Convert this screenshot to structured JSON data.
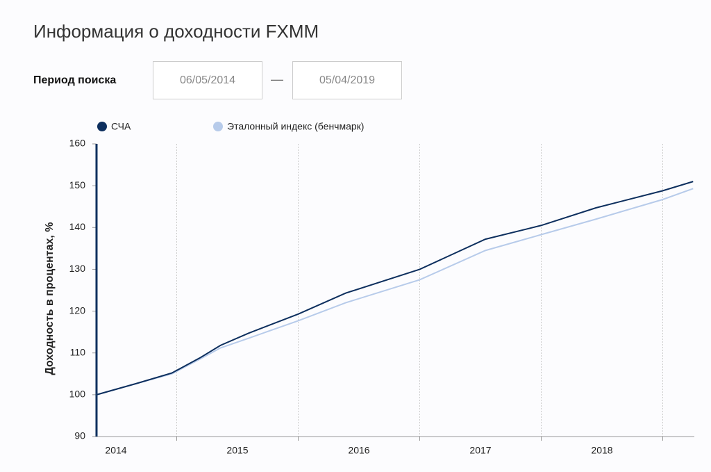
{
  "header": {
    "title": "Информация о доходности FXMM"
  },
  "filter": {
    "label": "Период поиска",
    "from": "06/05/2014",
    "separator": "—",
    "to": "05/04/2019"
  },
  "chart_data": {
    "type": "line",
    "y_label": "Доходность в процентах, %",
    "xlim": [
      2014.34,
      2019.26
    ],
    "xticks": [
      {
        "value": 2014.5,
        "label": "2014"
      },
      {
        "value": 2015.5,
        "label": "2015"
      },
      {
        "value": 2016.5,
        "label": "2016"
      },
      {
        "value": 2017.5,
        "label": "2017"
      },
      {
        "value": 2018.5,
        "label": "2018"
      }
    ],
    "xgrid": [
      2015,
      2016,
      2017,
      2018,
      2019
    ],
    "ylim": [
      90,
      160
    ],
    "yticks": [
      90,
      100,
      110,
      120,
      130,
      140,
      150,
      160
    ],
    "grid": true,
    "series": [
      {
        "name": "СЧА",
        "color": "#0d2f5e",
        "x": [
          2014.34,
          2014.67,
          2014.96,
          2015.19,
          2015.36,
          2015.59,
          2016.0,
          2016.39,
          2017.0,
          2017.54,
          2018.0,
          2018.45,
          2019.0,
          2019.25
        ],
        "values": [
          100,
          102.7,
          105.2,
          108.8,
          111.8,
          114.7,
          119.3,
          124.3,
          130,
          137.2,
          140.5,
          144.7,
          148.8,
          151
        ]
      },
      {
        "name": "Эталонный индекс (бенчмарк)",
        "color": "#b7cbea",
        "x": [
          2014.34,
          2014.67,
          2014.96,
          2015.19,
          2015.36,
          2015.59,
          2016.0,
          2016.39,
          2017.0,
          2017.54,
          2018.0,
          2018.45,
          2019.0,
          2019.25
        ],
        "values": [
          100,
          102.7,
          105,
          108.5,
          111.2,
          113.5,
          117.7,
          122,
          127.5,
          134.5,
          138.3,
          142,
          146.7,
          149.3
        ]
      }
    ]
  }
}
